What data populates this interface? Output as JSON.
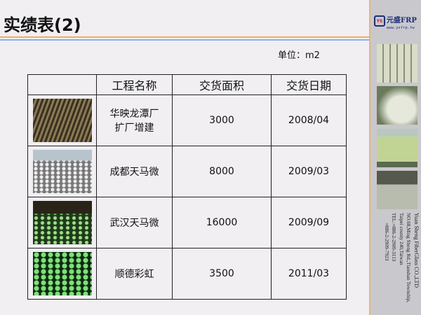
{
  "title": "实绩表(2)",
  "unit_label": "单位：m2",
  "table": {
    "headers": [
      "",
      "工程名称",
      "交货面积",
      "交货日期"
    ],
    "rows": [
      {
        "name_lines": [
          "华映龙潭厂",
          "扩厂增建"
        ],
        "area": "3000",
        "date": "2008/04",
        "photo": "factory-interior-photo"
      },
      {
        "name_lines": [
          "成都天马微",
          ""
        ],
        "area": "8000",
        "date": "2009/03",
        "photo": "construction-site-photo"
      },
      {
        "name_lines": [
          "武汉天马微",
          ""
        ],
        "area": "16000",
        "date": "2009/09",
        "photo": "perforated-floor-photo"
      },
      {
        "name_lines": [
          "顺德彩虹",
          ""
        ],
        "area": "3500",
        "date": "2011/03",
        "photo": "green-floor-photo"
      }
    ]
  },
  "sidebar": {
    "logo": {
      "mark": "YS",
      "name": "元盛FRP",
      "url": "www.ysfrp.tw"
    },
    "address": [
      "Yuan Sheng FiberGlass CO.,LTD",
      "NO.68,Ming Sheng Rd.,Tianshan Township,",
      "Taipei county 240,Taiwan",
      "TEL:+886-2-2909-3113",
      "+886-2-2909-7923"
    ]
  },
  "colors": {
    "accent_orange": "#e7b06a",
    "accent_blue": "#8fb0dc",
    "brand_navy": "#1c2f7a"
  }
}
